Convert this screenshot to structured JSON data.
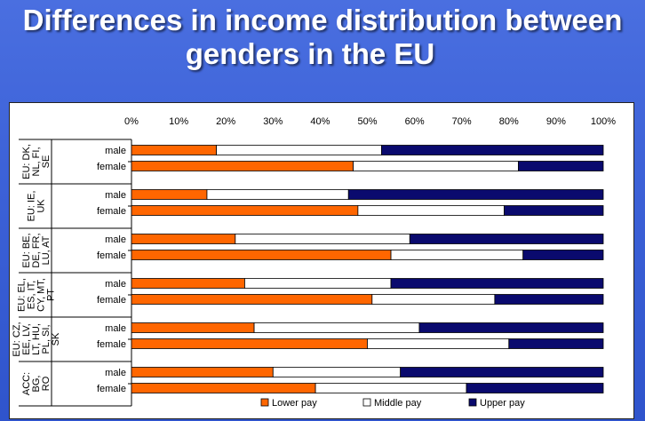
{
  "title_line1": "Differences in income distribution between",
  "title_line2": "genders in the EU",
  "chart_data": {
    "type": "bar",
    "orientation": "horizontal",
    "stacked_percent": true,
    "xlim": [
      0,
      100
    ],
    "x_ticks": [
      "0%",
      "10%",
      "20%",
      "30%",
      "40%",
      "50%",
      "60%",
      "70%",
      "80%",
      "90%",
      "100%"
    ],
    "groups": [
      {
        "label": "EU: DK, NL, FI, SE",
        "label_lines": [
          "EU: DK,",
          "NL, FI,",
          "SE"
        ]
      },
      {
        "label": "EU: IE, UK",
        "label_lines": [
          "EU: IE,",
          "UK"
        ]
      },
      {
        "label": "EU: BE, DE, FR, LU, AT",
        "label_lines": [
          "EU: BE,",
          "DE, FR,",
          "LU, AT"
        ]
      },
      {
        "label": "EU: EL, ES, IT, CY, MT, PT",
        "label_lines": [
          "EU: EL,",
          "ES, IT,",
          "CY, MT,",
          "PT"
        ]
      },
      {
        "label": "EU: CZ, EE, LV, LT, HU, PL, SI, SK",
        "label_lines": [
          "EU: CZ,",
          "EE, LV,",
          "LT, HU,",
          "PL, SI,",
          "SK"
        ]
      },
      {
        "label": "ACC: BG, RO",
        "label_lines": [
          "ACC:",
          "BG,",
          "RO"
        ]
      }
    ],
    "categories": [
      "male",
      "female",
      "male",
      "female",
      "male",
      "female",
      "male",
      "female",
      "male",
      "female",
      "male",
      "female"
    ],
    "series": [
      {
        "name": "Lower pay",
        "color": "#ff6600",
        "values": [
          18,
          47,
          16,
          48,
          22,
          55,
          24,
          51,
          26,
          50,
          30,
          39
        ]
      },
      {
        "name": "Middle pay",
        "color": "#ffffff",
        "values": [
          35,
          35,
          30,
          31,
          37,
          28,
          31,
          26,
          35,
          30,
          27,
          32
        ]
      },
      {
        "name": "Upper pay",
        "color": "#0a0a6e",
        "values": [
          47,
          18,
          54,
          21,
          41,
          17,
          45,
          23,
          39,
          20,
          43,
          29
        ]
      }
    ]
  }
}
